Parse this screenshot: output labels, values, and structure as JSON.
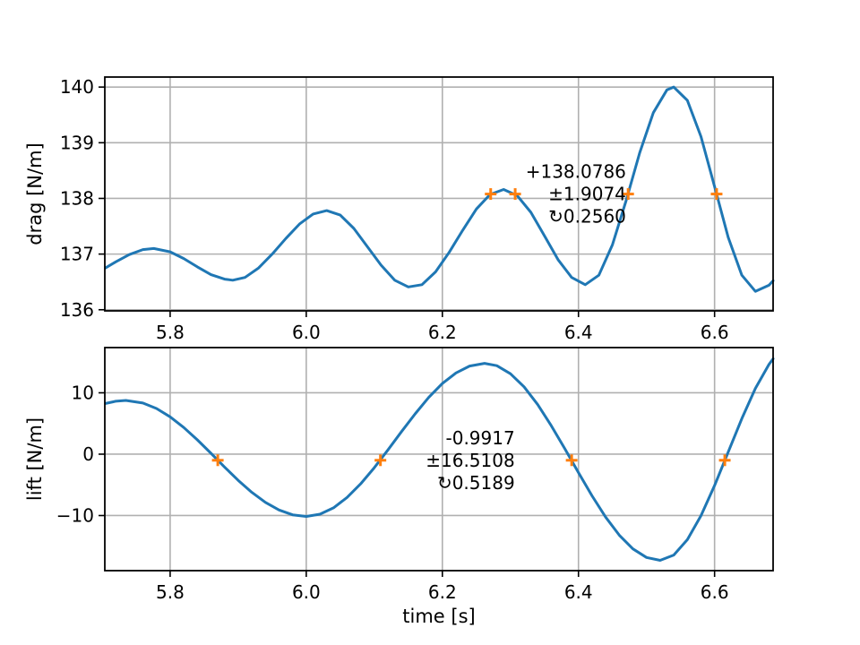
{
  "figure": {
    "background": "#ffffff"
  },
  "colors": {
    "line": "#1f77b4",
    "marker": "#ff7f0e",
    "grid": "#b0b0b0",
    "text": "#000000",
    "spine": "#000000"
  },
  "chart_data": [
    {
      "type": "line",
      "title": "",
      "xlabel": "",
      "ylabel": "drag [N/m]",
      "grid": true,
      "legend": null,
      "xlim": [
        5.704,
        6.686
      ],
      "ylim": [
        135.98,
        140.18
      ],
      "xticks": {
        "values": [
          5.8,
          6.0,
          6.2,
          6.4,
          6.6
        ],
        "labels": [
          "5.8",
          "6.0",
          "6.2",
          "6.4",
          "6.6"
        ]
      },
      "yticks": {
        "values": [
          136,
          137,
          138,
          139,
          140
        ],
        "labels": [
          "136",
          "137",
          "138",
          "139",
          "140"
        ]
      },
      "series": [
        {
          "name": "drag",
          "color": "#1f77b4",
          "x": [
            5.705,
            5.72,
            5.74,
            5.76,
            5.776,
            5.8,
            5.82,
            5.84,
            5.86,
            5.88,
            5.892,
            5.91,
            5.93,
            5.95,
            5.97,
            5.99,
            6.01,
            6.03,
            6.05,
            6.07,
            6.09,
            6.11,
            6.13,
            6.15,
            6.17,
            6.19,
            6.21,
            6.23,
            6.25,
            6.27,
            6.29,
            6.31,
            6.33,
            6.35,
            6.37,
            6.39,
            6.41,
            6.43,
            6.45,
            6.47,
            6.49,
            6.51,
            6.53,
            6.54,
            6.56,
            6.58,
            6.6,
            6.62,
            6.64,
            6.66,
            6.68,
            6.686
          ],
          "y": [
            136.75,
            136.86,
            136.99,
            137.08,
            137.1,
            137.04,
            136.92,
            136.77,
            136.63,
            136.55,
            136.53,
            136.58,
            136.75,
            137.0,
            137.28,
            137.54,
            137.72,
            137.78,
            137.7,
            137.46,
            137.13,
            136.8,
            136.53,
            136.41,
            136.45,
            136.68,
            137.03,
            137.43,
            137.81,
            138.07,
            138.16,
            138.05,
            137.75,
            137.33,
            136.9,
            136.58,
            136.45,
            136.62,
            137.17,
            137.96,
            138.82,
            139.54,
            139.95,
            140.0,
            139.76,
            139.11,
            138.21,
            137.3,
            136.62,
            136.33,
            136.44,
            136.52
          ]
        }
      ],
      "markers": {
        "symbol": "+",
        "color": "#ff7f0e",
        "x": [
          6.271,
          6.307,
          6.473,
          6.603
        ],
        "y": [
          138.0786,
          138.0786,
          138.0786,
          138.0786
        ]
      },
      "annotation": {
        "lines": [
          "+138.0786",
          "±1.9074",
          "↻0.2560"
        ],
        "anchor": {
          "x": 6.47,
          "y": 138.0786
        },
        "align": "right"
      }
    },
    {
      "type": "line",
      "title": "",
      "xlabel": "time [s]",
      "ylabel": "lift [N/m]",
      "grid": true,
      "legend": null,
      "xlim": [
        5.704,
        6.686
      ],
      "ylim": [
        -18.98,
        17.37
      ],
      "xticks": {
        "values": [
          5.8,
          6.0,
          6.2,
          6.4,
          6.6
        ],
        "labels": [
          "5.8",
          "6.0",
          "6.2",
          "6.4",
          "6.6"
        ]
      },
      "yticks": {
        "values": [
          -10,
          0,
          10
        ],
        "labels": [
          "−10",
          "0",
          "10"
        ]
      },
      "series": [
        {
          "name": "lift",
          "color": "#1f77b4",
          "x": [
            5.705,
            5.72,
            5.735,
            5.76,
            5.78,
            5.8,
            5.82,
            5.84,
            5.86,
            5.88,
            5.9,
            5.92,
            5.94,
            5.96,
            5.98,
            6.0,
            6.02,
            6.04,
            6.06,
            6.08,
            6.1,
            6.12,
            6.14,
            6.16,
            6.18,
            6.2,
            6.22,
            6.24,
            6.262,
            6.28,
            6.3,
            6.32,
            6.34,
            6.36,
            6.38,
            6.4,
            6.42,
            6.44,
            6.46,
            6.48,
            6.5,
            6.52,
            6.54,
            6.56,
            6.58,
            6.6,
            6.62,
            6.64,
            6.66,
            6.68,
            6.686
          ],
          "y": [
            8.26,
            8.63,
            8.75,
            8.34,
            7.44,
            6.08,
            4.35,
            2.34,
            0.14,
            -2.1,
            -4.27,
            -6.22,
            -7.85,
            -9.1,
            -9.89,
            -10.15,
            -9.79,
            -8.74,
            -7.06,
            -4.84,
            -2.2,
            0.69,
            3.67,
            6.57,
            9.25,
            11.51,
            13.24,
            14.37,
            14.8,
            14.42,
            13.11,
            10.97,
            8.09,
            4.65,
            0.89,
            -3.0,
            -6.79,
            -10.27,
            -13.2,
            -15.43,
            -16.83,
            -17.3,
            -16.44,
            -13.93,
            -10.02,
            -5.1,
            0.35,
            5.8,
            10.72,
            14.63,
            15.54
          ]
        }
      ],
      "markers": {
        "symbol": "+",
        "color": "#ff7f0e",
        "x": [
          5.87,
          6.109,
          6.39,
          6.615
        ],
        "y": [
          -0.9917,
          -0.9917,
          -0.9917,
          -0.9917
        ]
      },
      "annotation": {
        "lines": [
          "-0.9917",
          "±16.5108",
          "↻0.5189"
        ],
        "anchor": {
          "x": 6.3065,
          "y": -0.9917
        },
        "align": "right"
      }
    }
  ]
}
